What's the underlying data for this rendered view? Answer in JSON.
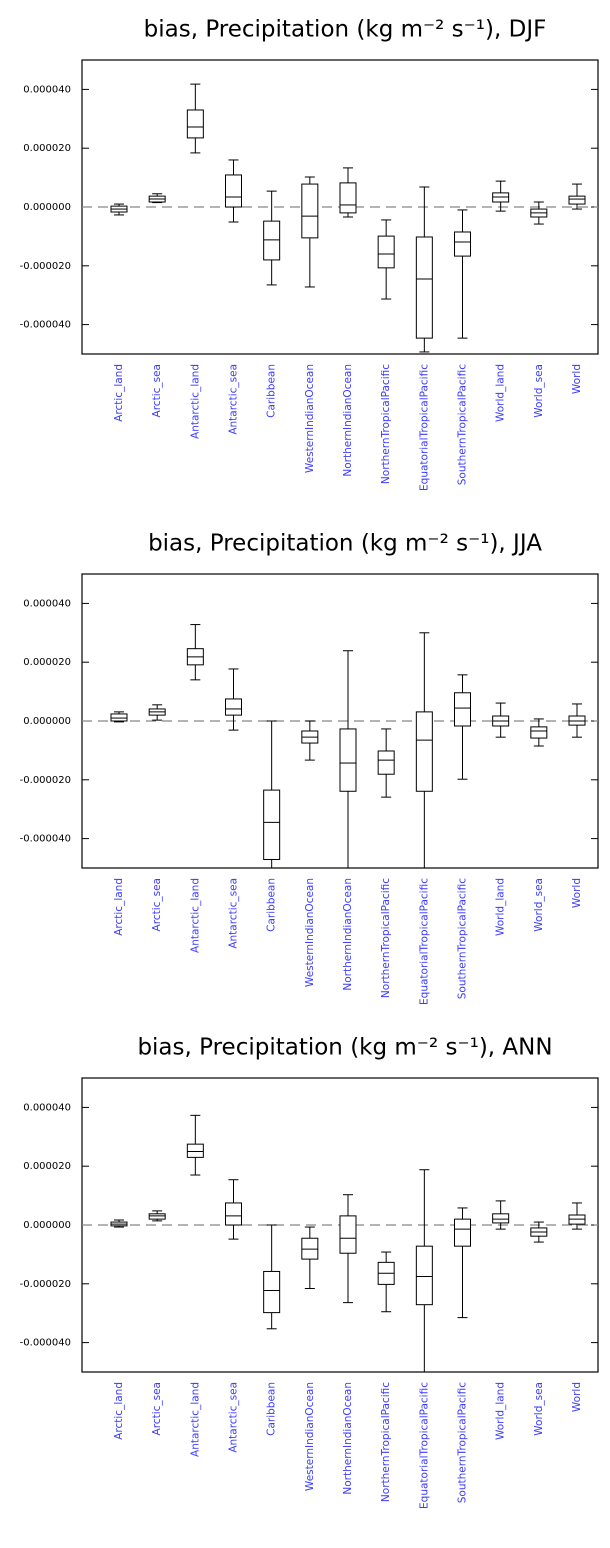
{
  "chart_data": [
    {
      "type": "box",
      "title": "bias, Precipitation (kg m⁻² s⁻¹), DJF",
      "categories": [
        "Arctic_land",
        "Arctic_sea",
        "Antarctic_land",
        "Antarctic_sea",
        "Caribbean",
        "WesternIndianOcean",
        "NorthernIndianOcean",
        "NorthernTropicalPacific",
        "EquatorialTropicalPacific",
        "SouthernTropicalPacific",
        "World_land",
        "World_sea",
        "World"
      ],
      "min": [
        -2.7e-06,
        1.5e-06,
        1.84e-05,
        -5.1e-06,
        -2.65e-05,
        -2.72e-05,
        -3.4e-06,
        -3.13e-05,
        -4.93e-05,
        -4.46e-05,
        -1.4e-06,
        -5.8e-06,
        -7e-07
      ],
      "q1": [
        -1.7e-06,
        1.7e-06,
        2.35e-05,
        0,
        -1.8e-05,
        -1.05e-05,
        -2e-06,
        -2.07e-05,
        -4.46e-05,
        -1.67e-05,
        1.7e-06,
        -3.4e-06,
        1e-06
      ],
      "median": [
        -7e-07,
        2.7e-06,
        2.72e-05,
        3.4e-06,
        -1.12e-05,
        -3.1e-06,
        7e-07,
        -1.6e-05,
        -2.45e-05,
        -1.19e-05,
        3.4e-06,
        -2e-06,
        2.7e-06
      ],
      "q3": [
        3e-07,
        3.7e-06,
        3.3e-05,
        1.09e-05,
        -4.8e-06,
        7.8e-06,
        8.2e-06,
        -9.9e-06,
        -1.02e-05,
        -8.5e-06,
        4.8e-06,
        -7e-07,
        3.7e-06
      ],
      "max": [
        1e-06,
        4.5e-06,
        4.18e-05,
        1.6e-05,
        5.4e-06,
        1.02e-05,
        1.33e-05,
        -4.4e-06,
        6.8e-06,
        -1e-06,
        8.8e-06,
        1.7e-06,
        7.8e-06
      ],
      "ylim": [
        -5e-05,
        5e-05
      ],
      "yticks": [
        {
          "value": -4e-05,
          "label": "-0.000040"
        },
        {
          "value": -2e-05,
          "label": "-0.000020"
        },
        {
          "value": 0,
          "label": "0.000000"
        },
        {
          "value": 2e-05,
          "label": "0.000020"
        },
        {
          "value": 4e-05,
          "label": "0.000040"
        }
      ],
      "reference_line": 0,
      "box_color": "#000000",
      "label_color": "#3b3bff"
    },
    {
      "type": "box",
      "title": "bias, Precipitation (kg m⁻² s⁻¹), JJA",
      "categories": [
        "Arctic_land",
        "Arctic_sea",
        "Antarctic_land",
        "Antarctic_sea",
        "Caribbean",
        "WesternIndianOcean",
        "NorthernIndianOcean",
        "NorthernTropicalPacific",
        "EquatorialTropicalPacific",
        "SouthernTropicalPacific",
        "World_land",
        "World_sea",
        "World"
      ],
      "min": [
        -3e-07,
        3e-07,
        1.4e-05,
        -3.1e-06,
        -5e-05,
        -1.33e-05,
        -5e-05,
        -2.59e-05,
        -5e-05,
        -1.98e-05,
        -5.5e-06,
        -8.5e-06,
        -5.5e-06
      ],
      "q1": [
        0,
        2e-06,
        1.91e-05,
        2e-06,
        -4.71e-05,
        -7.5e-06,
        -2.39e-05,
        -1.81e-05,
        -2.39e-05,
        -1.7e-06,
        -1.7e-06,
        -5.8e-06,
        -1.4e-06
      ],
      "median": [
        1e-06,
        3.1e-06,
        2.18e-05,
        4.1e-06,
        -3.45e-05,
        -5.5e-06,
        -1.43e-05,
        -1.33e-05,
        -6.5e-06,
        4.4e-06,
        0,
        -3.4e-06,
        0
      ],
      "q3": [
        2.4e-06,
        4.1e-06,
        2.46e-05,
        7.5e-06,
        -2.35e-05,
        -3.4e-06,
        -2.7e-06,
        -1.02e-05,
        3.1e-06,
        9.6e-06,
        1.7e-06,
        -2e-06,
        1.7e-06
      ],
      "max": [
        3.1e-06,
        5.5e-06,
        3.28e-05,
        1.77e-05,
        0,
        0,
        2.39e-05,
        -2.7e-06,
        3e-05,
        1.57e-05,
        6.1e-06,
        7e-07,
        5.8e-06
      ],
      "ylim": [
        -5e-05,
        5e-05
      ],
      "yticks": [
        {
          "value": -4e-05,
          "label": "-0.000040"
        },
        {
          "value": -2e-05,
          "label": "-0.000020"
        },
        {
          "value": 0,
          "label": "0.000000"
        },
        {
          "value": 2e-05,
          "label": "0.000020"
        },
        {
          "value": 4e-05,
          "label": "0.000040"
        }
      ],
      "reference_line": 0,
      "box_color": "#000000",
      "label_color": "#3b3bff"
    },
    {
      "type": "box",
      "title": "bias, Precipitation (kg m⁻² s⁻¹), ANN",
      "categories": [
        "Arctic_land",
        "Arctic_sea",
        "Antarctic_land",
        "Antarctic_sea",
        "Caribbean",
        "WesternIndianOcean",
        "NorthernIndianOcean",
        "NorthernTropicalPacific",
        "EquatorialTropicalPacific",
        "SouthernTropicalPacific",
        "World_land",
        "World_sea",
        "World"
      ],
      "min": [
        -7e-07,
        1.4e-06,
        1.7e-05,
        -4.8e-06,
        -3.53e-05,
        -2.16e-05,
        -2.64e-05,
        -2.95e-05,
        -5e-05,
        -3.15e-05,
        -1.4e-06,
        -5.8e-06,
        -1.4e-06
      ],
      "q1": [
        -3e-07,
        2e-06,
        2.3e-05,
        0,
        -2.98e-05,
        -1.16e-05,
        -9.6e-06,
        -2.02e-05,
        -2.71e-05,
        -7.2e-06,
        7e-07,
        -3.8e-06,
        3e-07
      ],
      "median": [
        3e-07,
        3.1e-06,
        2.5e-05,
        3.1e-06,
        -2.23e-05,
        -8.2e-06,
        -4.5e-06,
        -1.64e-05,
        -1.75e-05,
        -1.4e-06,
        2e-06,
        -2.4e-06,
        2e-06
      ],
      "q3": [
        1e-06,
        3.8e-06,
        2.75e-05,
        7.5e-06,
        -1.58e-05,
        -4.5e-06,
        3.1e-06,
        -1.27e-05,
        -7.2e-06,
        2e-06,
        3.8e-06,
        -1e-06,
        3.4e-06
      ],
      "max": [
        1.7e-06,
        4.8e-06,
        3.73e-05,
        1.54e-05,
        0,
        -7e-07,
        1.03e-05,
        -9.2e-06,
        1.88e-05,
        5.8e-06,
        8.2e-06,
        1e-06,
        7.5e-06
      ],
      "ylim": [
        -5e-05,
        5e-05
      ],
      "yticks": [
        {
          "value": -4e-05,
          "label": "-0.000040"
        },
        {
          "value": -2e-05,
          "label": "-0.000020"
        },
        {
          "value": 0,
          "label": "0.000000"
        },
        {
          "value": 2e-05,
          "label": "0.000020"
        },
        {
          "value": 4e-05,
          "label": "0.000040"
        }
      ],
      "reference_line": 0,
      "box_color": "#000000",
      "label_color": "#3b3bff"
    }
  ]
}
